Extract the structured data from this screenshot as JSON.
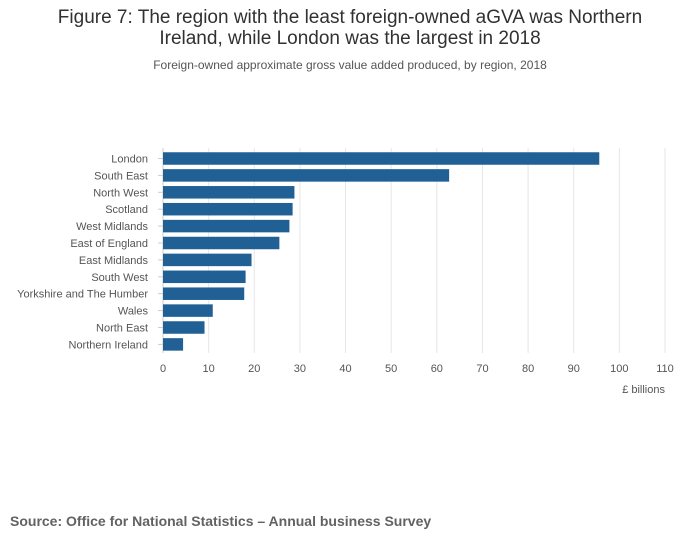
{
  "title": "Figure 7: The region with the least foreign-owned aGVA was Northern Ireland, while London was the largest in 2018",
  "subtitle": "Foreign-owned approximate gross value added produced, by region, 2018",
  "footer": {
    "source": "Source: Office for National Statistics – Annual business Survey"
  },
  "chart_data": {
    "type": "bar",
    "orientation": "horizontal",
    "categories": [
      "London",
      "South East",
      "North West",
      "Scotland",
      "West Midlands",
      "East of England",
      "East Midlands",
      "South West",
      "Yorkshire and The Humber",
      "Wales",
      "North East",
      "Northern Ireland"
    ],
    "values": [
      95.6,
      62.7,
      28.8,
      28.4,
      27.7,
      25.5,
      19.4,
      18.1,
      17.8,
      10.9,
      9.1,
      4.4
    ],
    "xlabel": "£ billions",
    "ylabel": "",
    "xlim": [
      0,
      110
    ],
    "xticks": [
      "0",
      "10",
      "20",
      "30",
      "40",
      "50",
      "60",
      "70",
      "80",
      "90",
      "100",
      "110"
    ],
    "bar_color": "#206095",
    "grid": true
  }
}
